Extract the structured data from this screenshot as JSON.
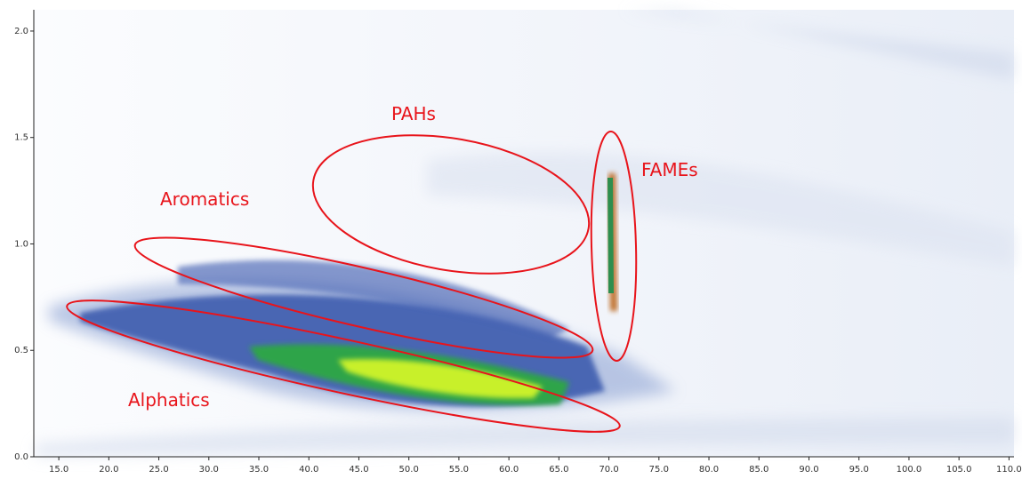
{
  "chart_data": {
    "type": "contour",
    "annotations": [
      "PAHs",
      "Aromatics",
      "FAMEs",
      "Alphatics"
    ],
    "xlim": [
      12.5,
      110.5
    ],
    "xticks": [
      {
        "value": 15,
        "label": "15.0"
      },
      {
        "value": 20,
        "label": "20.0"
      },
      {
        "value": 25,
        "label": "25.0"
      },
      {
        "value": 30,
        "label": "30.0"
      },
      {
        "value": 35,
        "label": "35.0"
      },
      {
        "value": 40,
        "label": "40.0"
      },
      {
        "value": 45,
        "label": "45.0"
      },
      {
        "value": 50,
        "label": "50.0"
      },
      {
        "value": 55,
        "label": "55.0"
      },
      {
        "value": 60,
        "label": "60.0"
      },
      {
        "value": 65,
        "label": "65.0"
      },
      {
        "value": 70,
        "label": "70.0"
      },
      {
        "value": 75,
        "label": "75.0"
      },
      {
        "value": 80,
        "label": "80.0"
      },
      {
        "value": 85,
        "label": "85.0"
      },
      {
        "value": 90,
        "label": "90.0"
      },
      {
        "value": 95,
        "label": "95.0"
      },
      {
        "value": 100,
        "label": "100.0"
      },
      {
        "value": 105,
        "label": "105.0"
      },
      {
        "value": 110,
        "label": "110.0"
      }
    ],
    "ylim": [
      0,
      2.1
    ],
    "yticks": [
      {
        "value": 0,
        "label": "0.0"
      },
      {
        "value": 0.5,
        "label": "0.5"
      },
      {
        "value": 1,
        "label": "1.0"
      },
      {
        "value": 1.5,
        "label": "1.5"
      },
      {
        "value": 2,
        "label": "2.0"
      }
    ]
  }
}
